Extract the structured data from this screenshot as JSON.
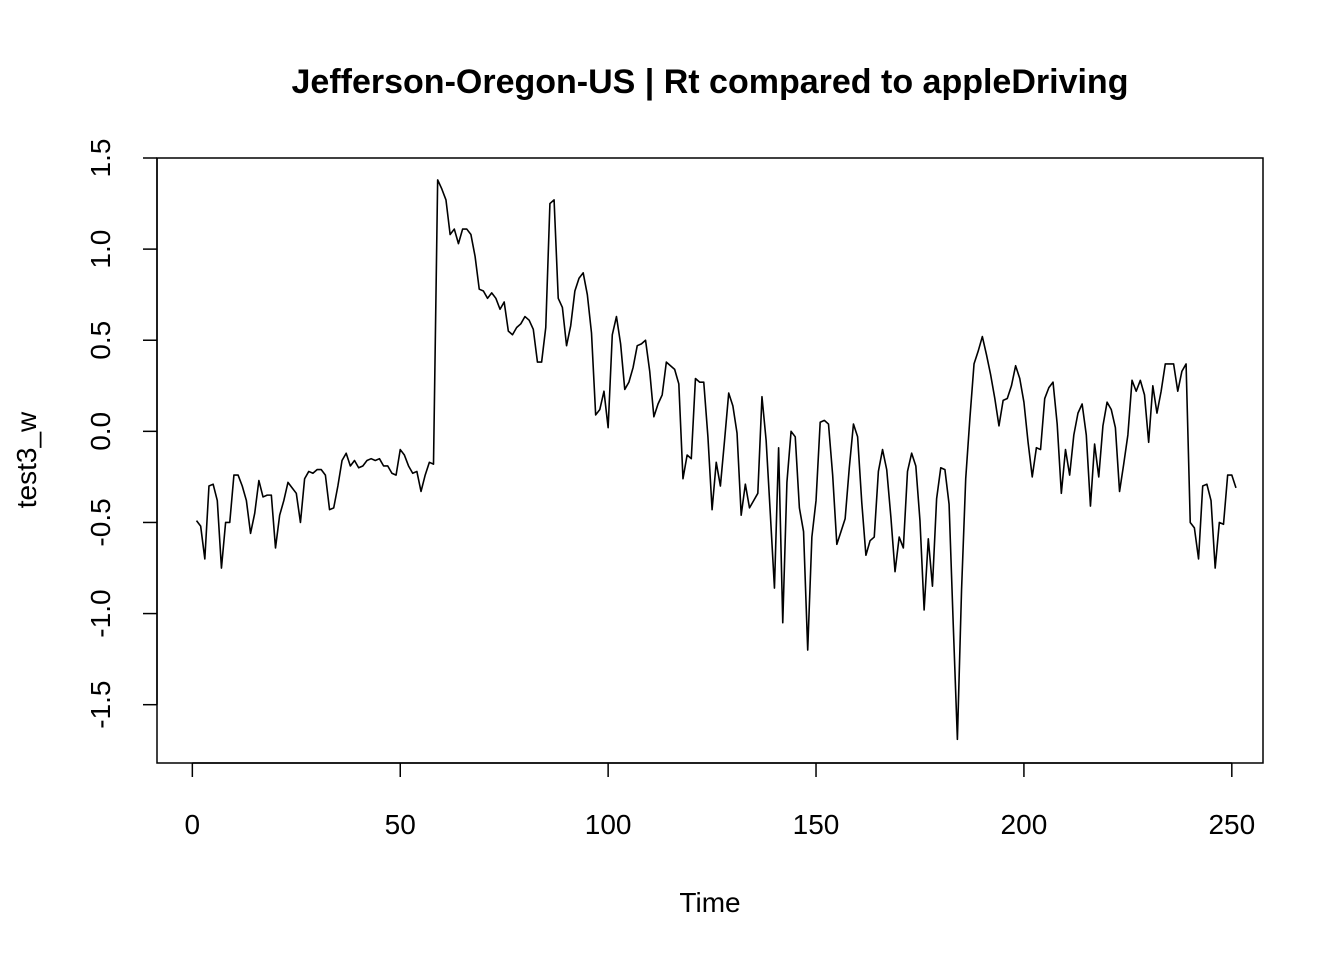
{
  "chart_data": {
    "type": "line",
    "title": "Jefferson-Oregon-US | Rt compared to appleDriving",
    "xlabel": "Time",
    "ylabel": "test3_w",
    "xlim": [
      -8.5,
      257.5
    ],
    "ylim": [
      -1.82,
      1.5
    ],
    "xticks": [
      0,
      50,
      100,
      150,
      200,
      250
    ],
    "yticks": [
      -1.5,
      -1.0,
      -0.5,
      0.0,
      0.5,
      1.0,
      1.5
    ],
    "xtick_labels": [
      "0",
      "50",
      "100",
      "150",
      "200",
      "250"
    ],
    "ytick_labels": [
      "-1.5",
      "-1.0",
      "-0.5",
      "0.0",
      "0.5",
      "1.0",
      "1.5"
    ],
    "grid": false,
    "x_start": 1,
    "series": [
      {
        "color": "#000000",
        "values": [
          -0.49,
          -0.52,
          -0.7,
          -0.3,
          -0.29,
          -0.38,
          -0.75,
          -0.5,
          -0.5,
          -0.24,
          -0.24,
          -0.3,
          -0.38,
          -0.56,
          -0.45,
          -0.27,
          -0.36,
          -0.35,
          -0.35,
          -0.64,
          -0.46,
          -0.38,
          -0.28,
          -0.31,
          -0.34,
          -0.5,
          -0.26,
          -0.22,
          -0.23,
          -0.21,
          -0.21,
          -0.24,
          -0.43,
          -0.42,
          -0.3,
          -0.16,
          -0.12,
          -0.19,
          -0.16,
          -0.2,
          -0.19,
          -0.16,
          -0.15,
          -0.16,
          -0.15,
          -0.19,
          -0.19,
          -0.23,
          -0.24,
          -0.1,
          -0.13,
          -0.19,
          -0.23,
          -0.22,
          -0.33,
          -0.24,
          -0.17,
          -0.18,
          1.38,
          1.33,
          1.27,
          1.08,
          1.11,
          1.03,
          1.11,
          1.11,
          1.08,
          0.96,
          0.78,
          0.77,
          0.73,
          0.76,
          0.73,
          0.67,
          0.71,
          0.55,
          0.53,
          0.57,
          0.59,
          0.63,
          0.61,
          0.56,
          0.38,
          0.38,
          0.57,
          1.25,
          1.27,
          0.73,
          0.68,
          0.47,
          0.58,
          0.77,
          0.84,
          0.87,
          0.75,
          0.54,
          0.09,
          0.12,
          0.22,
          0.02,
          0.53,
          0.63,
          0.48,
          0.23,
          0.27,
          0.35,
          0.47,
          0.48,
          0.5,
          0.33,
          0.08,
          0.15,
          0.2,
          0.38,
          0.36,
          0.34,
          0.26,
          -0.26,
          -0.13,
          -0.15,
          0.29,
          0.27,
          0.27,
          -0.03,
          -0.43,
          -0.17,
          -0.3,
          -0.05,
          0.21,
          0.14,
          -0.01,
          -0.46,
          -0.29,
          -0.42,
          -0.38,
          -0.34,
          0.19,
          -0.05,
          -0.45,
          -0.86,
          -0.09,
          -1.05,
          -0.28,
          0.0,
          -0.03,
          -0.42,
          -0.55,
          -1.2,
          -0.58,
          -0.38,
          0.05,
          0.06,
          0.04,
          -0.24,
          -0.62,
          -0.55,
          -0.48,
          -0.2,
          0.04,
          -0.03,
          -0.39,
          -0.68,
          -0.6,
          -0.58,
          -0.22,
          -0.1,
          -0.21,
          -0.47,
          -0.77,
          -0.58,
          -0.64,
          -0.22,
          -0.12,
          -0.19,
          -0.49,
          -0.98,
          -0.59,
          -0.85,
          -0.37,
          -0.2,
          -0.21,
          -0.4,
          -1.06,
          -1.69,
          -0.87,
          -0.26,
          0.07,
          0.37,
          0.44,
          0.52,
          0.42,
          0.31,
          0.18,
          0.03,
          0.17,
          0.18,
          0.25,
          0.36,
          0.29,
          0.16,
          -0.06,
          -0.25,
          -0.09,
          -0.1,
          0.18,
          0.24,
          0.27,
          0.04,
          -0.34,
          -0.1,
          -0.24,
          -0.02,
          0.1,
          0.15,
          -0.02,
          -0.41,
          -0.07,
          -0.25,
          0.03,
          0.16,
          0.12,
          0.02,
          -0.33,
          -0.18,
          -0.02,
          0.28,
          0.22,
          0.28,
          0.2,
          -0.06,
          0.25,
          0.1,
          0.22,
          0.37,
          0.37,
          0.37,
          0.22,
          0.33,
          0.37,
          -0.5,
          -0.53,
          -0.7,
          -0.3,
          -0.29,
          -0.38,
          -0.75,
          -0.5,
          -0.51,
          -0.24,
          -0.24,
          -0.31
        ]
      }
    ]
  }
}
